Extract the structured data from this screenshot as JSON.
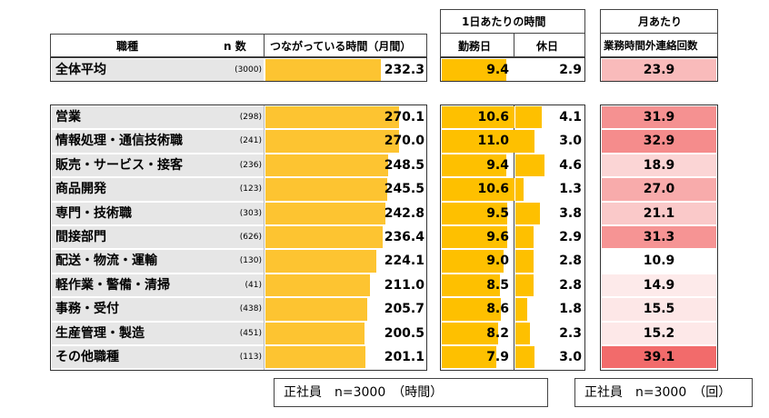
{
  "headers": {
    "occupation": "職種",
    "n": "n 数",
    "connected": "つながっている時間（月間）",
    "per_day": "1日あたりの時間",
    "workday": "勤務日",
    "holiday": "休日",
    "per_month": "月あたり",
    "contact_count": "業務時間外連絡回数"
  },
  "overall": {
    "label": "全体平均",
    "n": "(3000)",
    "monthly": "232.3",
    "workday": "9.4",
    "holiday": "2.9",
    "contacts": "23.9"
  },
  "notes": {
    "hours": "正社員　n=3000　（時間）",
    "count": "正社員　n=3000　（回）"
  },
  "colors": {
    "bar_monthly": "#fdc431",
    "bar_daily": "#fec000",
    "stripe": "#e6e6e6",
    "heat_low": "#ffffff",
    "heat_high": "#f26b6b"
  },
  "chart_data": {
    "type": "table",
    "columns": [
      "職種",
      "n 数",
      "つながっている時間（月間）",
      "勤務日",
      "休日",
      "業務時間外連絡回数"
    ],
    "rows": [
      {
        "label": "営業",
        "n": "(298)",
        "monthly": 270.1,
        "workday": 10.6,
        "holiday": 4.1,
        "contacts": 31.9
      },
      {
        "label": "情報処理・通信技術職",
        "n": "(241)",
        "monthly": 270.0,
        "workday": 11.0,
        "holiday": 3.0,
        "contacts": 32.9
      },
      {
        "label": "販売・サービス・接客",
        "n": "(236)",
        "monthly": 248.5,
        "workday": 9.4,
        "holiday": 4.6,
        "contacts": 18.9
      },
      {
        "label": "商品開発",
        "n": "(123)",
        "monthly": 245.5,
        "workday": 10.6,
        "holiday": 1.3,
        "contacts": 27.0
      },
      {
        "label": "専門・技術職",
        "n": "(303)",
        "monthly": 242.8,
        "workday": 9.5,
        "holiday": 3.8,
        "contacts": 21.1
      },
      {
        "label": "間接部門",
        "n": "(626)",
        "monthly": 236.4,
        "workday": 9.6,
        "holiday": 2.9,
        "contacts": 31.3
      },
      {
        "label": "配送・物流・運輸",
        "n": "(130)",
        "monthly": 224.1,
        "workday": 9.0,
        "holiday": 2.8,
        "contacts": 10.9
      },
      {
        "label": "軽作業・警備・清掃",
        "n": "(41)",
        "monthly": 211.0,
        "workday": 8.5,
        "holiday": 2.8,
        "contacts": 14.9
      },
      {
        "label": "事務・受付",
        "n": "(438)",
        "monthly": 205.7,
        "workday": 8.6,
        "holiday": 1.8,
        "contacts": 15.5
      },
      {
        "label": "生産管理・製造",
        "n": "(451)",
        "monthly": 200.5,
        "workday": 8.2,
        "holiday": 2.3,
        "contacts": 15.2
      },
      {
        "label": "その他職種",
        "n": "(113)",
        "monthly": 201.1,
        "workday": 7.9,
        "holiday": 3.0,
        "contacts": 39.1
      }
    ]
  }
}
